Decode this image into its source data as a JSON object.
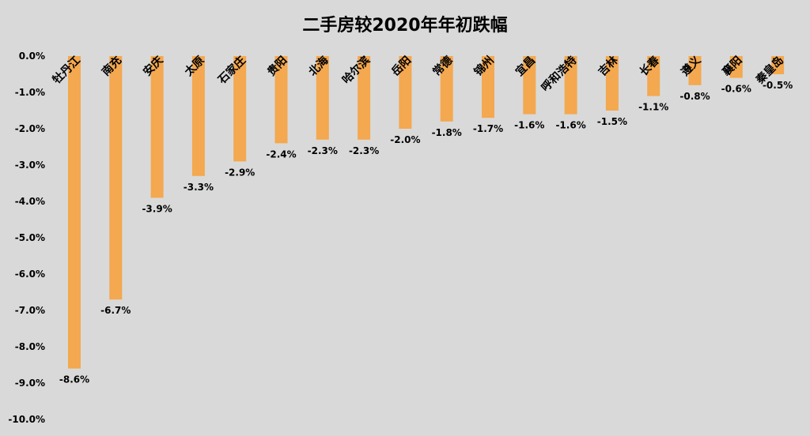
{
  "chart_data": {
    "type": "bar",
    "title": "二手房较2020年年初跌幅",
    "categories": [
      "牡丹江",
      "南充",
      "安庆",
      "太原",
      "石家庄",
      "贵阳",
      "北海",
      "哈尔滨",
      "岳阳",
      "常德",
      "锦州",
      "宜昌",
      "呼和浩特",
      "吉林",
      "长春",
      "遵义",
      "襄阳",
      "秦皇岛"
    ],
    "values": [
      -8.6,
      -6.7,
      -3.9,
      -3.3,
      -2.9,
      -2.4,
      -2.3,
      -2.3,
      -2.0,
      -1.8,
      -1.7,
      -1.6,
      -1.6,
      -1.5,
      -1.1,
      -0.8,
      -0.6,
      -0.5
    ],
    "data_labels": [
      "-8.6%",
      "-6.7%",
      "-3.9%",
      "-3.3%",
      "-2.9%",
      "-2.4%",
      "-2.3%",
      "-2.3%",
      "-2.0%",
      "-1.8%",
      "-1.7%",
      "-1.6%",
      "-1.6%",
      "-1.5%",
      "-1.1%",
      "-0.8%",
      "-0.6%",
      "-0.5%"
    ],
    "y_ticks": [
      0,
      -1,
      -2,
      -3,
      -4,
      -5,
      -6,
      -7,
      -8,
      -9,
      -10
    ],
    "y_tick_labels": [
      "0.0%",
      "-1.0%",
      "-2.0%",
      "-3.0%",
      "-4.0%",
      "-5.0%",
      "-6.0%",
      "-7.0%",
      "-8.0%",
      "-9.0%",
      "-10.0%"
    ],
    "ylim": [
      -10,
      0
    ],
    "xlabel": "",
    "ylabel": "",
    "grid": false,
    "legend": "none",
    "colors": {
      "bar": "#f4a84f",
      "background": "#d9d9d9"
    }
  }
}
